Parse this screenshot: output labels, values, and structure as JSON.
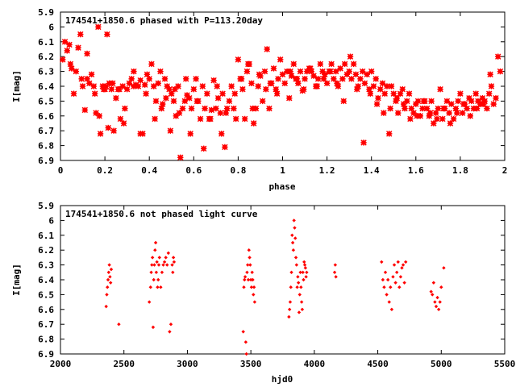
{
  "chart_data": [
    {
      "type": "scatter",
      "title": "174541+1850.6 phased with P=113.20day",
      "xlabel": "phase",
      "ylabel": "I[mag]",
      "xlim": [
        0,
        2
      ],
      "ylim": [
        6.9,
        5.9
      ],
      "y_inverted": true,
      "x_ticks": [
        "0",
        "0.2",
        "0.4",
        "0.6",
        "0.8",
        "1",
        "1.2",
        "1.4",
        "1.6",
        "1.8",
        "2"
      ],
      "y_ticks": [
        "5.9",
        "6",
        "6.1",
        "6.2",
        "6.3",
        "6.4",
        "6.5",
        "6.6",
        "6.7",
        "6.8",
        "6.9"
      ],
      "grid": false,
      "marker": "star",
      "color": "#ff0000",
      "x": [
        0.01,
        0.03,
        0.04,
        0.05,
        0.06,
        0.07,
        0.08,
        0.09,
        0.1,
        0.11,
        0.12,
        0.13,
        0.14,
        0.15,
        0.16,
        0.17,
        0.18,
        0.19,
        0.2,
        0.21,
        0.22,
        0.23,
        0.24,
        0.25,
        0.26,
        0.27,
        0.28,
        0.29,
        0.3,
        0.31,
        0.32,
        0.33,
        0.34,
        0.35,
        0.36,
        0.37,
        0.38,
        0.39,
        0.4,
        0.41,
        0.42,
        0.43,
        0.44,
        0.45,
        0.46,
        0.47,
        0.48,
        0.49,
        0.5,
        0.51,
        0.52,
        0.53,
        0.54,
        0.55,
        0.56,
        0.57,
        0.58,
        0.59,
        0.6,
        0.61,
        0.62,
        0.63,
        0.64,
        0.65,
        0.66,
        0.67,
        0.68,
        0.69,
        0.7,
        0.71,
        0.72,
        0.73,
        0.74,
        0.75,
        0.76,
        0.77,
        0.78,
        0.79,
        0.8,
        0.81,
        0.82,
        0.83,
        0.84,
        0.85,
        0.86,
        0.87,
        0.88,
        0.89,
        0.9,
        0.91,
        0.92,
        0.93,
        0.94,
        0.95,
        0.96,
        0.97,
        0.98,
        0.99,
        1.0,
        1.01,
        1.02,
        1.03,
        1.04,
        1.05,
        1.06,
        1.07,
        1.08,
        1.09,
        1.1,
        1.11,
        1.12,
        1.13,
        1.14,
        1.15,
        1.16,
        1.17,
        1.18,
        1.19,
        1.2,
        1.21,
        1.22,
        1.23,
        1.24,
        1.25,
        1.26,
        1.27,
        1.28,
        1.29,
        1.3,
        1.31,
        1.32,
        1.33,
        1.34,
        1.35,
        1.36,
        1.37,
        1.38,
        1.39,
        1.4,
        1.41,
        1.42,
        1.43,
        1.44,
        1.45,
        1.46,
        1.47,
        1.48,
        1.49,
        1.5,
        1.51,
        1.52,
        1.53,
        1.54,
        1.55,
        1.56,
        1.57,
        1.58,
        1.59,
        1.6,
        1.61,
        1.62,
        1.63,
        1.64,
        1.65,
        1.66,
        1.67,
        1.68,
        1.69,
        1.7,
        1.71,
        1.72,
        1.73,
        1.74,
        1.75,
        1.76,
        1.77,
        1.78,
        1.79,
        1.8,
        1.81,
        1.82,
        1.83,
        1.84,
        1.85,
        1.86,
        1.87,
        1.88,
        1.89,
        1.9,
        1.91,
        1.92,
        1.93,
        1.94,
        1.95,
        1.96,
        1.97,
        1.98,
        0.02,
        0.045,
        0.095,
        0.12,
        0.155,
        0.175,
        0.195,
        0.205,
        0.215,
        0.235,
        0.265,
        0.285,
        0.33,
        0.36,
        0.385,
        0.425,
        0.455,
        0.475,
        0.495,
        0.515,
        0.535,
        0.565,
        0.585,
        0.615,
        0.645,
        0.675,
        0.705,
        0.725,
        0.745,
        0.785,
        0.815,
        0.845,
        0.865,
        0.895,
        0.925,
        0.945,
        0.975,
        1.035,
        1.065,
        1.095,
        1.125,
        1.155,
        1.185,
        1.215,
        1.245,
        1.275,
        1.305,
        1.335,
        1.365,
        1.395,
        1.425,
        1.455,
        1.485,
        1.515,
        1.545,
        1.575,
        1.605,
        1.635,
        1.665,
        1.695,
        1.725,
        1.755,
        1.785,
        1.815,
        1.845,
        1.875,
        1.905,
        1.935
      ],
      "y": [
        6.22,
        6.16,
        6.12,
        6.28,
        6.45,
        6.3,
        6.14,
        6.05,
        6.4,
        6.56,
        6.35,
        6.38,
        6.32,
        6.4,
        6.58,
        6.0,
        6.72,
        6.4,
        6.42,
        6.05,
        6.38,
        6.42,
        6.7,
        6.48,
        6.42,
        6.62,
        6.4,
        6.55,
        6.42,
        6.38,
        6.35,
        6.3,
        6.39,
        6.4,
        6.36,
        6.72,
        6.39,
        6.32,
        6.35,
        6.25,
        6.4,
        6.5,
        6.38,
        6.3,
        6.52,
        6.35,
        6.4,
        6.42,
        6.45,
        6.5,
        6.6,
        6.4,
        6.88,
        6.55,
        6.5,
        6.46,
        6.48,
        6.55,
        6.42,
        6.35,
        6.5,
        6.62,
        6.4,
        6.55,
        6.45,
        6.62,
        6.56,
        6.36,
        6.55,
        6.48,
        6.58,
        6.45,
        6.81,
        6.55,
        6.5,
        6.4,
        6.55,
        6.62,
        6.22,
        6.35,
        6.42,
        6.62,
        6.3,
        6.25,
        6.38,
        6.65,
        6.55,
        6.4,
        6.33,
        6.5,
        6.3,
        6.15,
        6.55,
        6.38,
        6.28,
        6.42,
        6.35,
        6.22,
        6.32,
        6.38,
        6.3,
        6.48,
        6.33,
        6.25,
        6.35,
        6.38,
        6.3,
        6.43,
        6.35,
        6.3,
        6.28,
        6.3,
        6.33,
        6.4,
        6.35,
        6.25,
        6.3,
        6.32,
        6.38,
        6.3,
        6.25,
        6.35,
        6.3,
        6.4,
        6.28,
        6.35,
        6.25,
        6.32,
        6.3,
        6.35,
        6.25,
        6.32,
        6.4,
        6.35,
        6.3,
        6.38,
        6.32,
        6.42,
        6.3,
        6.4,
        6.35,
        6.48,
        6.42,
        6.38,
        6.45,
        6.4,
        6.72,
        6.4,
        6.45,
        6.5,
        6.58,
        6.45,
        6.42,
        6.55,
        6.5,
        6.45,
        6.55,
        6.58,
        6.52,
        6.5,
        6.6,
        6.55,
        6.5,
        6.55,
        6.6,
        6.5,
        6.65,
        6.58,
        6.55,
        6.42,
        6.62,
        6.55,
        6.5,
        6.58,
        6.52,
        6.62,
        6.55,
        6.5,
        6.45,
        6.58,
        6.52,
        6.55,
        6.48,
        6.5,
        6.55,
        6.45,
        6.5,
        6.52,
        6.48,
        6.5,
        6.55,
        6.45,
        6.4,
        6.52,
        6.48,
        6.2,
        6.3,
        6.1,
        6.25,
        6.35,
        6.18,
        6.45,
        6.6,
        6.42,
        6.4,
        6.68,
        6.38,
        6.42,
        6.65,
        6.4,
        6.72,
        6.45,
        6.62,
        6.55,
        6.48,
        6.7,
        6.42,
        6.58,
        6.35,
        6.72,
        6.5,
        6.82,
        6.62,
        6.4,
        6.72,
        6.58,
        6.45,
        6.35,
        6.25,
        6.55,
        6.32,
        6.42,
        6.38,
        6.45,
        6.3,
        6.35,
        6.42,
        6.28,
        6.4,
        6.35,
        6.3,
        6.38,
        6.5,
        6.2,
        6.42,
        6.78,
        6.45,
        6.52,
        6.58,
        6.55,
        6.48,
        6.52,
        6.62,
        6.6,
        6.5,
        6.58,
        6.62,
        6.55,
        6.65,
        6.58,
        6.52,
        6.6,
        6.55,
        6.52,
        6.32
      ]
    },
    {
      "type": "scatter",
      "title": "174541+1850.6 not phased light curve",
      "xlabel": "hjd0",
      "ylabel": "I[mag]",
      "xlim": [
        2000,
        5500
      ],
      "ylim": [
        6.9,
        5.9
      ],
      "y_inverted": true,
      "x_ticks": [
        "2000",
        "2500",
        "3000",
        "3500",
        "4000",
        "4500",
        "5000",
        "5500"
      ],
      "y_ticks": [
        "5.9",
        "6",
        "6.1",
        "6.2",
        "6.3",
        "6.4",
        "6.5",
        "6.6",
        "6.7",
        "6.8",
        "6.9"
      ],
      "grid": false,
      "marker": "diamond",
      "color": "#ff0000",
      "x": [
        2360,
        2365,
        2370,
        2375,
        2380,
        2385,
        2390,
        2395,
        2400,
        2460,
        2700,
        2710,
        2715,
        2720,
        2725,
        2730,
        2735,
        2740,
        2745,
        2750,
        2755,
        2760,
        2765,
        2770,
        2775,
        2780,
        2790,
        2800,
        2810,
        2820,
        2830,
        2840,
        2850,
        2860,
        2870,
        2880,
        2885,
        2890,
        2895,
        3440,
        3445,
        3450,
        3455,
        3460,
        3465,
        3470,
        3475,
        3480,
        3485,
        3490,
        3495,
        3500,
        3505,
        3510,
        3515,
        3520,
        3525,
        3530,
        3800,
        3805,
        3810,
        3815,
        3820,
        3825,
        3830,
        3835,
        3840,
        3845,
        3850,
        3855,
        3860,
        3865,
        3870,
        3875,
        3880,
        3885,
        3890,
        3895,
        3900,
        3905,
        3910,
        3915,
        3920,
        3925,
        3930,
        3935,
        3940,
        4160,
        4165,
        4170,
        4530,
        4540,
        4550,
        4560,
        4570,
        4580,
        4590,
        4600,
        4610,
        4620,
        4630,
        4640,
        4650,
        4660,
        4670,
        4680,
        4690,
        4700,
        4710,
        4720,
        4920,
        4930,
        4940,
        4950,
        4960,
        4970,
        4980,
        4990,
        5000,
        5020
      ],
      "y": [
        6.58,
        6.5,
        6.45,
        6.4,
        6.35,
        6.3,
        6.38,
        6.42,
        6.33,
        6.7,
        6.55,
        6.45,
        6.35,
        6.3,
        6.25,
        6.72,
        6.4,
        6.3,
        6.2,
        6.15,
        6.35,
        6.28,
        6.45,
        6.4,
        6.3,
        6.25,
        6.45,
        6.35,
        6.3,
        6.28,
        6.25,
        6.3,
        6.22,
        6.75,
        6.7,
        6.3,
        6.35,
        6.25,
        6.28,
        6.75,
        6.45,
        6.4,
        6.38,
        6.82,
        6.9,
        6.35,
        6.3,
        6.4,
        6.2,
        6.25,
        6.3,
        6.4,
        6.45,
        6.35,
        6.4,
        6.5,
        6.45,
        6.55,
        6.65,
        6.6,
        6.55,
        6.45,
        6.35,
        6.1,
        6.15,
        6.2,
        6.0,
        6.05,
        6.12,
        6.25,
        6.3,
        6.45,
        6.38,
        6.42,
        6.62,
        6.5,
        6.35,
        6.45,
        6.55,
        6.6,
        6.35,
        6.4,
        6.28,
        6.3,
        6.32,
        6.38,
        6.35,
        6.35,
        6.3,
        6.38,
        6.28,
        6.4,
        6.45,
        6.35,
        6.5,
        6.4,
        6.55,
        6.45,
        6.6,
        6.38,
        6.3,
        6.42,
        6.35,
        6.28,
        6.45,
        6.38,
        6.32,
        6.3,
        6.42,
        6.28,
        6.48,
        6.5,
        6.42,
        6.55,
        6.58,
        6.52,
        6.6,
        6.55,
        6.45,
        6.32
      ]
    }
  ]
}
